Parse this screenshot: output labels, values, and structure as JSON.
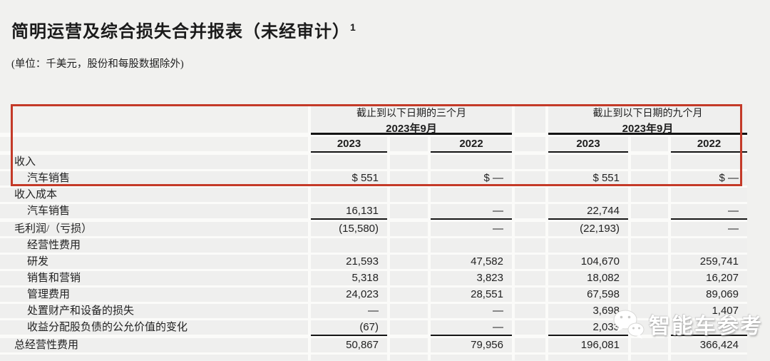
{
  "header": {
    "title": "简明运营及综合损失合并报表（未经审计）",
    "title_superscript": "1",
    "subtitle": "(单位：千美元，股份和每股数据除外)"
  },
  "table": {
    "column_groups": [
      {
        "period": "截止到以下日期的三个月",
        "date": "2023年9月"
      },
      {
        "period": "截止到以下日期的九个月",
        "date": "2023年9月"
      }
    ],
    "year_columns": [
      "2023",
      "2022",
      "2023",
      "2022"
    ],
    "rows": [
      {
        "label": "收入",
        "indent": false,
        "underline": false,
        "values": [
          "",
          "",
          "",
          ""
        ]
      },
      {
        "label": "汽车销售",
        "indent": true,
        "underline": false,
        "values": [
          "$ 551",
          "$ —",
          "$ 551",
          "$ —"
        ]
      },
      {
        "label": "收入成本",
        "indent": false,
        "underline": false,
        "values": [
          "",
          "",
          "",
          ""
        ]
      },
      {
        "label": "汽车销售",
        "indent": true,
        "underline": true,
        "values": [
          "16,131",
          "—",
          "22,744",
          "—"
        ]
      },
      {
        "label": "毛利润/（亏损）",
        "indent": false,
        "underline": false,
        "values": [
          "(15,580)",
          "—",
          "(22,193)",
          "—"
        ]
      },
      {
        "label": "经营性费用",
        "indent": true,
        "underline": false,
        "values": [
          "",
          "",
          "",
          ""
        ]
      },
      {
        "label": "研发",
        "indent": true,
        "underline": false,
        "values": [
          "21,593",
          "47,582",
          "104,670",
          "259,741"
        ]
      },
      {
        "label": "销售和营销",
        "indent": true,
        "underline": false,
        "values": [
          "5,318",
          "3,823",
          "18,082",
          "16,207"
        ]
      },
      {
        "label": "管理费用",
        "indent": true,
        "underline": false,
        "values": [
          "24,023",
          "28,551",
          "67,598",
          "89,069"
        ]
      },
      {
        "label": "处置财产和设备的损失",
        "indent": true,
        "underline": false,
        "values": [
          "—",
          "—",
          "3,698",
          "1,407"
        ]
      },
      {
        "label": "收益分配股负债的公允价值的变化",
        "indent": true,
        "underline": true,
        "values": [
          "(67)",
          "—",
          "2,033",
          ""
        ]
      },
      {
        "label": "总经营性费用",
        "indent": false,
        "underline": false,
        "values": [
          "50,867",
          "79,956",
          "196,081",
          "366,424"
        ]
      }
    ]
  },
  "annotations": {
    "highlight_box_color": "#c43a28"
  },
  "watermark": {
    "icon": "wechat-icon",
    "text": "智能车参考"
  }
}
